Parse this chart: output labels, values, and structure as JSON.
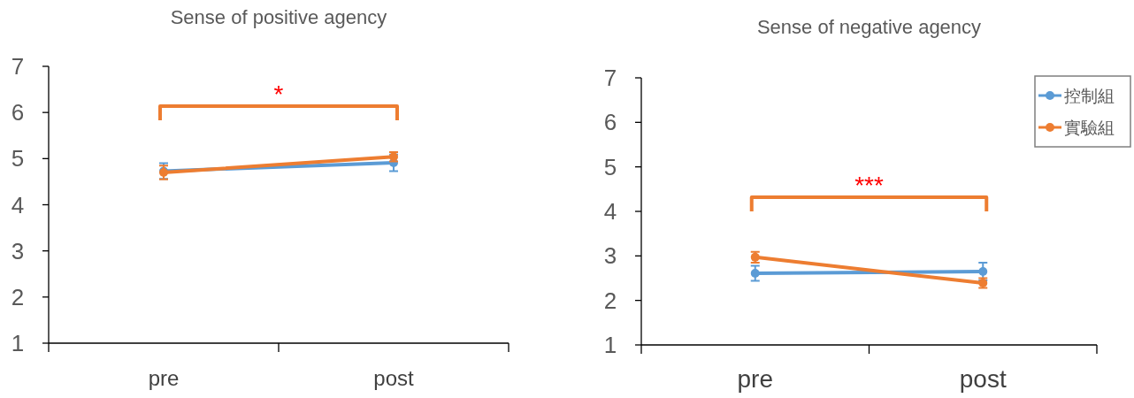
{
  "chart_data": [
    {
      "type": "line",
      "title": "Sense of positive agency",
      "categories": [
        "pre",
        "post"
      ],
      "ylim": [
        1,
        7
      ],
      "yticks": [
        1,
        2,
        3,
        4,
        5,
        6,
        7
      ],
      "marker": "circle",
      "legend": false,
      "grid": false,
      "annotations": [
        "*"
      ],
      "series": [
        {
          "color": "#5b9bd5",
          "values": [
            4.73,
            4.91
          ],
          "errors": [
            0.17,
            0.18
          ]
        },
        {
          "color": "#ed7d31",
          "values": [
            4.7,
            5.04
          ],
          "errors": [
            0.15,
            0.1
          ]
        }
      ]
    },
    {
      "type": "line",
      "title": "Sense of negative agency",
      "categories": [
        "pre",
        "post"
      ],
      "ylim": [
        1,
        7
      ],
      "yticks": [
        1,
        2,
        3,
        4,
        5,
        6,
        7
      ],
      "marker": "circle",
      "legend": "right",
      "grid": false,
      "annotations": [
        "***"
      ],
      "series": [
        {
          "name": "控制組",
          "color": "#5b9bd5",
          "values": [
            2.61,
            2.65
          ],
          "errors": [
            0.17,
            0.2
          ]
        },
        {
          "name": "實驗組",
          "color": "#ed7d31",
          "values": [
            2.97,
            2.39
          ],
          "errors": [
            0.12,
            0.11
          ]
        }
      ]
    }
  ]
}
